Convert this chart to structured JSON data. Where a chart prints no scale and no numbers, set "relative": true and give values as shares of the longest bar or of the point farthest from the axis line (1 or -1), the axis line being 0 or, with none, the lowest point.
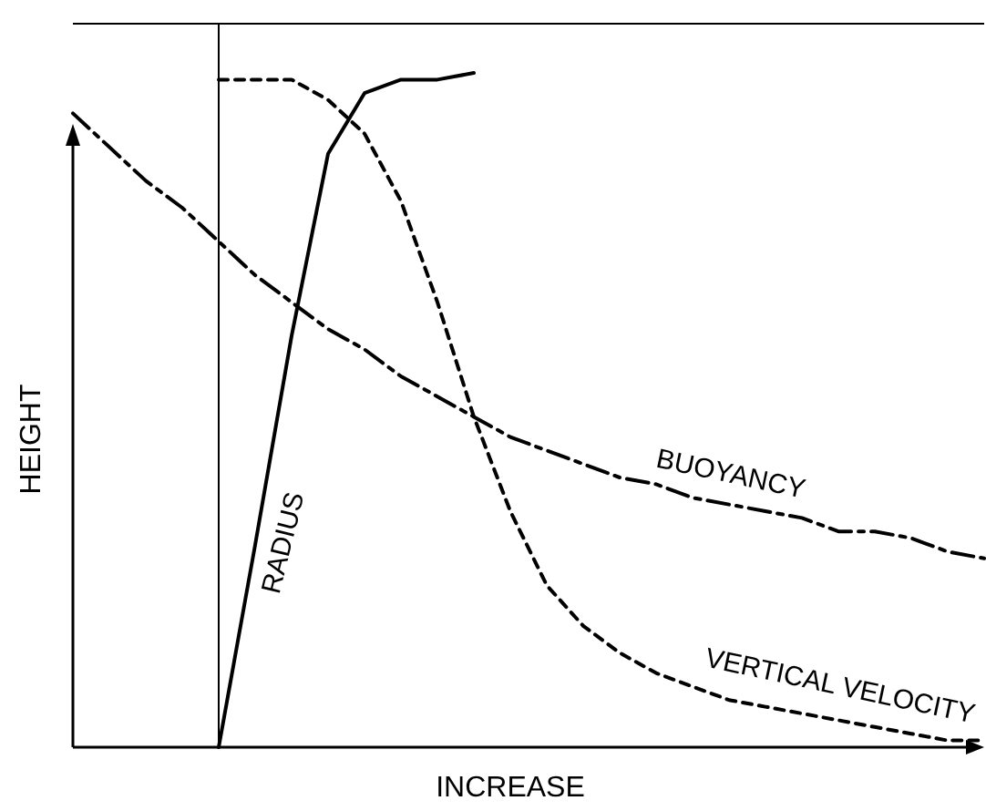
{
  "chart_data": {
    "type": "line",
    "relative": true,
    "xlabel": "INCREASE",
    "ylabel": "HEIGHT",
    "marker": "none",
    "categories": [
      null,
      null,
      null,
      null,
      null,
      null,
      null,
      null,
      null,
      null,
      null,
      null,
      null,
      null,
      null,
      null,
      null,
      null,
      null,
      null,
      null,
      null,
      null,
      null,
      null,
      null
    ],
    "series": [
      {
        "name": "RADIUS",
        "color": "#000000",
        "line_style": "solid",
        "values": [
          null,
          null,
          null,
          null,
          0,
          0.3,
          0.61,
          0.88,
          0.97,
          0.99,
          0.99,
          1.0,
          null,
          null,
          null,
          null,
          null,
          null,
          null,
          null,
          null,
          null,
          null,
          null,
          null,
          null
        ]
      },
      {
        "name": "BUOYANCY",
        "color": "#000000",
        "line_style": "dashdot",
        "values": [
          0.94,
          0.89,
          0.84,
          0.8,
          0.75,
          0.7,
          0.66,
          0.62,
          0.59,
          0.55,
          0.52,
          0.49,
          0.46,
          0.44,
          0.42,
          0.4,
          0.39,
          0.37,
          0.36,
          0.35,
          0.34,
          0.32,
          0.32,
          0.31,
          0.29,
          0.28
        ]
      },
      {
        "name": "VERTICAL VELOCITY",
        "color": "#000000",
        "line_style": "dashed",
        "values": [
          null,
          null,
          null,
          null,
          0.99,
          0.99,
          0.99,
          0.96,
          0.91,
          0.81,
          0.66,
          0.49,
          0.35,
          0.24,
          0.18,
          0.14,
          0.11,
          0.09,
          0.07,
          0.06,
          0.05,
          0.04,
          0.03,
          0.02,
          0.01,
          0.01
        ]
      }
    ]
  }
}
